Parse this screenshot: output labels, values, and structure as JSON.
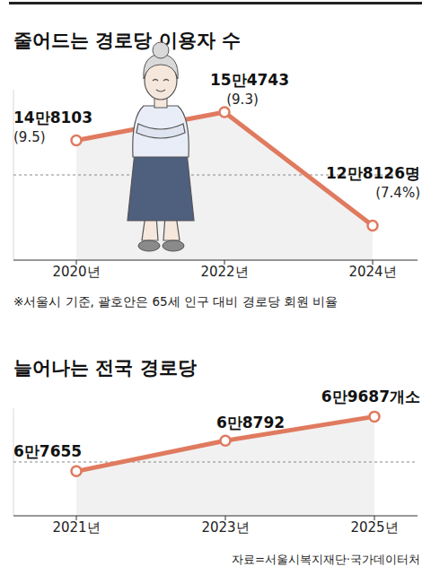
{
  "chart_data": [
    {
      "type": "line",
      "title": "줄어드는 경로당 이용자 수",
      "categories": [
        "2020년",
        "2022년",
        "2024년"
      ],
      "values": [
        148103,
        154743,
        128126
      ],
      "value_labels": [
        "14만8103",
        "15만4743",
        "12만8126명"
      ],
      "ratio": [
        9.5,
        9.3,
        7.4
      ],
      "ratio_labels": [
        "(9.5)",
        "(9.3)",
        "(7.4%)"
      ],
      "annotation": "※서울시 기준, 괄호안은 65세 인구 대비 경로당 회원 비율",
      "color": "#e07a5f",
      "ylim": [
        120000,
        160000
      ],
      "yticks": [
        120000,
        140000
      ],
      "grid": true,
      "data_labels": true,
      "tick_labels": "x",
      "marker": "circle"
    },
    {
      "type": "line",
      "title": "늘어나는 전국 경로당",
      "categories": [
        "2021년",
        "2023년",
        "2025년"
      ],
      "values": [
        67655,
        68792,
        69687
      ],
      "value_labels": [
        "6만7655",
        "6만8792",
        "6만9687개소"
      ],
      "source": "자료=서울시복지재단·국가데이터처",
      "color": "#e07a5f",
      "ylim": [
        66000,
        70000
      ],
      "yticks": [
        66000,
        68000
      ],
      "grid": true,
      "data_labels": true,
      "tick_labels": "x",
      "marker": "circle"
    }
  ]
}
